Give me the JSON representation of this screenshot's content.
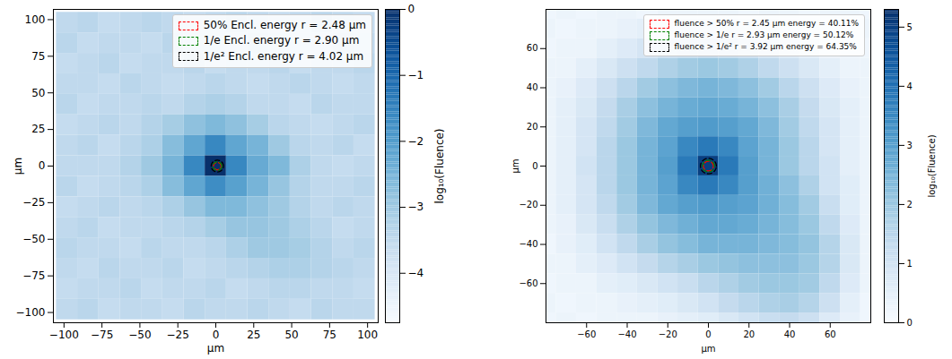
{
  "chart_data": [
    {
      "type": "heatmap",
      "xlabel": "μm",
      "ylabel": "μm",
      "xlim": [
        -107,
        107
      ],
      "ylim": [
        -107,
        107
      ],
      "xticks": [
        -100,
        -75,
        -50,
        -25,
        0,
        25,
        50,
        75,
        100
      ],
      "yticks": [
        -100,
        -75,
        -50,
        -25,
        0,
        25,
        50,
        75,
        100
      ],
      "x_centers": [
        -98,
        -84,
        -70,
        -56,
        -42,
        -28,
        -14,
        0,
        14,
        28,
        42,
        56,
        70,
        84,
        98
      ],
      "y_centers": [
        98,
        84,
        70,
        56,
        42,
        28,
        14,
        0,
        -14,
        -28,
        -42,
        -56,
        -70,
        -84,
        -98
      ],
      "cells": [
        [
          -3.5,
          -3.4,
          -3.6,
          -3.5,
          -3.4,
          -3.5,
          -3.6,
          -3.5,
          -3.4,
          -3.5,
          -3.6,
          -3.5,
          -3.4,
          -3.5,
          -3.6
        ],
        [
          -3.4,
          -3.6,
          -3.5,
          -3.5,
          -3.6,
          -3.4,
          -3.5,
          -3.5,
          -3.6,
          -3.4,
          -3.5,
          -3.5,
          -3.6,
          -3.4,
          -3.5
        ],
        [
          -3.6,
          -3.5,
          -3.4,
          -3.6,
          -3.5,
          -3.5,
          -3.4,
          -3.6,
          -3.5,
          -3.5,
          -3.4,
          -3.6,
          -3.5,
          -3.5,
          -3.4
        ],
        [
          -3.5,
          -3.5,
          -3.6,
          -3.4,
          -3.5,
          -3.6,
          -3.5,
          -3.4,
          -3.5,
          -3.6,
          -3.5,
          -3.4,
          -3.5,
          -3.6,
          -3.5
        ],
        [
          -3.4,
          -3.6,
          -3.5,
          -3.5,
          -3.4,
          -3.5,
          -3.3,
          -3.2,
          -3.3,
          -3.5,
          -3.5,
          -3.6,
          -3.4,
          -3.5,
          -3.5
        ],
        [
          -3.6,
          -3.5,
          -3.4,
          -3.5,
          -3.3,
          -3.1,
          -2.8,
          -2.6,
          -2.8,
          -3.1,
          -3.4,
          -3.5,
          -3.6,
          -3.5,
          -3.4
        ],
        [
          -3.5,
          -3.4,
          -3.6,
          -3.4,
          -3.2,
          -2.7,
          -2.2,
          -1.6,
          -2.2,
          -2.5,
          -3.0,
          -3.4,
          -3.5,
          -3.4,
          -3.6
        ],
        [
          -3.5,
          -3.5,
          -3.5,
          -3.3,
          -3.0,
          -2.5,
          -1.6,
          0,
          -1.6,
          -2.3,
          -2.6,
          -3.2,
          -3.5,
          -3.6,
          -3.5
        ],
        [
          -3.4,
          -3.6,
          -3.5,
          -3.4,
          -3.2,
          -2.7,
          -2.2,
          -1.7,
          -2.1,
          -2.5,
          -2.9,
          -3.3,
          -3.5,
          -3.5,
          -3.4
        ],
        [
          -3.6,
          -3.5,
          -3.4,
          -3.5,
          -3.4,
          -3.2,
          -2.9,
          -2.6,
          -2.6,
          -2.8,
          -3.0,
          -3.3,
          -3.5,
          -3.4,
          -3.5
        ],
        [
          -3.5,
          -3.4,
          -3.6,
          -3.5,
          -3.5,
          -3.4,
          -3.3,
          -3.1,
          -2.9,
          -2.9,
          -3.0,
          -3.2,
          -3.4,
          -3.6,
          -3.5
        ],
        [
          -3.4,
          -3.5,
          -3.5,
          -3.6,
          -3.4,
          -3.5,
          -3.5,
          -3.4,
          -3.2,
          -3.0,
          -3.0,
          -3.1,
          -3.3,
          -3.5,
          -3.4
        ],
        [
          -3.5,
          -3.6,
          -3.4,
          -3.5,
          -3.5,
          -3.4,
          -3.6,
          -3.5,
          -3.4,
          -3.3,
          -3.2,
          -3.2,
          -3.3,
          -3.4,
          -3.5
        ],
        [
          -3.6,
          -3.5,
          -3.5,
          -3.4,
          -3.6,
          -3.5,
          -3.5,
          -3.4,
          -3.6,
          -3.5,
          -3.4,
          -3.4,
          -3.5,
          -3.5,
          -3.6
        ],
        [
          -3.5,
          -3.4,
          -3.6,
          -3.5,
          -3.5,
          -3.6,
          -3.4,
          -3.5,
          -3.5,
          -3.4,
          -3.5,
          -3.6,
          -3.4,
          -3.5,
          -3.5
        ]
      ],
      "colorbar": {
        "lim": [
          -4.75,
          0
        ],
        "ticks": [
          0,
          -1,
          -2,
          -3,
          -4
        ],
        "label": "log₁₀(Fluence)"
      },
      "center": [
        1,
        0
      ],
      "legend": "upper right",
      "circles": [
        {
          "label": "50% Encl. energy r = 2.48 μm",
          "color": "red",
          "r": 2.48,
          "line_style": "dashed"
        },
        {
          "label": "1/e Encl. energy r = 2.90 μm",
          "color": "green",
          "r": 2.9,
          "line_style": "dashed"
        },
        {
          "label": "1/e² Encl. energy r = 4.02 μm",
          "color": "black",
          "r": 4.02,
          "line_style": "dashed"
        }
      ]
    },
    {
      "type": "heatmap",
      "xlabel": "μm",
      "ylabel": "μm",
      "xlim": [
        -80,
        80
      ],
      "ylim": [
        -80,
        80
      ],
      "xticks": [
        -60,
        -40,
        -20,
        0,
        20,
        40,
        60
      ],
      "yticks": [
        -60,
        -40,
        -20,
        0,
        20,
        40,
        60
      ],
      "x_centers": [
        -80,
        -70,
        -60,
        -50,
        -40,
        -30,
        -20,
        -10,
        0,
        10,
        20,
        30,
        40,
        50,
        60,
        70,
        80
      ],
      "y_centers": [
        80,
        70,
        60,
        50,
        40,
        30,
        20,
        10,
        0,
        -10,
        -20,
        -30,
        -40,
        -50,
        -60,
        -70,
        -80
      ],
      "cells": [
        [
          0.2,
          0.3,
          0.2,
          0.3,
          0.3,
          0.2,
          0.3,
          0.3,
          0.3,
          0.3,
          0.2,
          0.3,
          0.3,
          0.2,
          0.3,
          0.3,
          0.2
        ],
        [
          0.3,
          0.2,
          0.3,
          0.3,
          0.4,
          0.5,
          0.6,
          0.7,
          0.7,
          0.7,
          0.6,
          0.5,
          0.4,
          0.3,
          0.3,
          0.2,
          0.3
        ],
        [
          0.2,
          0.3,
          0.3,
          0.5,
          0.7,
          0.9,
          1.1,
          1.2,
          1.3,
          1.2,
          1.1,
          0.9,
          0.7,
          0.5,
          0.3,
          0.3,
          0.2
        ],
        [
          0.3,
          0.3,
          0.5,
          0.8,
          1.1,
          1.4,
          1.7,
          1.9,
          2.0,
          1.9,
          1.7,
          1.4,
          1.1,
          0.8,
          0.5,
          0.3,
          0.3
        ],
        [
          0.3,
          0.4,
          0.7,
          1.1,
          1.5,
          1.9,
          2.2,
          2.4,
          2.5,
          2.4,
          2.2,
          1.9,
          1.5,
          1.1,
          0.7,
          0.4,
          0.3
        ],
        [
          0.3,
          0.5,
          0.8,
          1.3,
          1.8,
          2.2,
          2.5,
          2.7,
          2.8,
          2.7,
          2.5,
          2.2,
          1.8,
          1.3,
          0.8,
          0.5,
          0.3
        ],
        [
          0.3,
          0.5,
          0.9,
          1.4,
          1.9,
          2.4,
          2.8,
          3.0,
          3.1,
          3.0,
          2.8,
          2.4,
          1.9,
          1.4,
          0.9,
          0.5,
          0.3
        ],
        [
          0.3,
          0.5,
          0.9,
          1.5,
          2.0,
          2.5,
          2.9,
          3.5,
          3.8,
          3.5,
          2.9,
          2.5,
          2.0,
          1.5,
          0.9,
          0.5,
          0.3
        ],
        [
          0.3,
          0.5,
          1.0,
          1.5,
          2.0,
          2.5,
          3.0,
          3.8,
          5.0,
          3.8,
          3.0,
          2.5,
          2.0,
          1.5,
          1.0,
          0.5,
          0.3
        ],
        [
          0.3,
          0.5,
          0.9,
          1.5,
          2.0,
          2.5,
          2.9,
          3.5,
          3.8,
          3.5,
          3.0,
          2.6,
          2.2,
          1.7,
          1.0,
          0.6,
          0.3
        ],
        [
          0.3,
          0.5,
          0.9,
          1.4,
          1.9,
          2.4,
          2.8,
          3.0,
          3.1,
          3.0,
          2.9,
          2.6,
          2.3,
          1.9,
          1.2,
          0.6,
          0.3
        ],
        [
          0.3,
          0.4,
          0.8,
          1.2,
          1.7,
          2.1,
          2.4,
          2.6,
          2.8,
          2.8,
          2.7,
          2.5,
          2.3,
          2.0,
          1.4,
          0.7,
          0.3
        ],
        [
          0.2,
          0.4,
          0.6,
          1.0,
          1.4,
          1.8,
          2.1,
          2.3,
          2.5,
          2.5,
          2.5,
          2.4,
          2.3,
          2.1,
          1.6,
          0.8,
          0.3
        ],
        [
          0.3,
          0.3,
          0.5,
          0.7,
          1.0,
          1.3,
          1.6,
          1.8,
          2.0,
          2.1,
          2.2,
          2.2,
          2.2,
          2.0,
          1.6,
          0.8,
          0.3
        ],
        [
          0.2,
          0.3,
          0.3,
          0.5,
          0.6,
          0.8,
          1.0,
          1.2,
          1.5,
          1.7,
          1.9,
          2.0,
          2.0,
          1.9,
          1.4,
          0.7,
          0.3
        ],
        [
          0.3,
          0.2,
          0.3,
          0.3,
          0.4,
          0.5,
          0.6,
          0.8,
          1.0,
          1.3,
          1.5,
          1.7,
          1.8,
          1.6,
          1.1,
          0.5,
          0.2
        ],
        [
          0.2,
          0.3,
          0.2,
          0.3,
          0.3,
          0.3,
          0.4,
          0.5,
          0.6,
          0.8,
          1.0,
          1.2,
          1.3,
          1.1,
          0.7,
          0.4,
          0.2
        ]
      ],
      "colorbar": {
        "lim": [
          0,
          5.3
        ],
        "ticks": [
          0,
          1,
          2,
          3,
          4,
          5
        ],
        "label": "log₁₀(Fluence)"
      },
      "center": [
        0,
        0
      ],
      "legend": "upper right",
      "circles": [
        {
          "label": "fluence > 50% r = 2.45 μm energy = 40.11%",
          "color": "red",
          "r": 2.45,
          "line_style": "dashed"
        },
        {
          "label": "fluence > 1/e r = 2.93 μm energy = 50.12%",
          "color": "green",
          "r": 2.93,
          "line_style": "dashed"
        },
        {
          "label": "fluence > 1/e² r = 3.92 μm energy = 64.35%",
          "color": "black",
          "r": 3.92,
          "line_style": "dashed"
        }
      ]
    }
  ]
}
